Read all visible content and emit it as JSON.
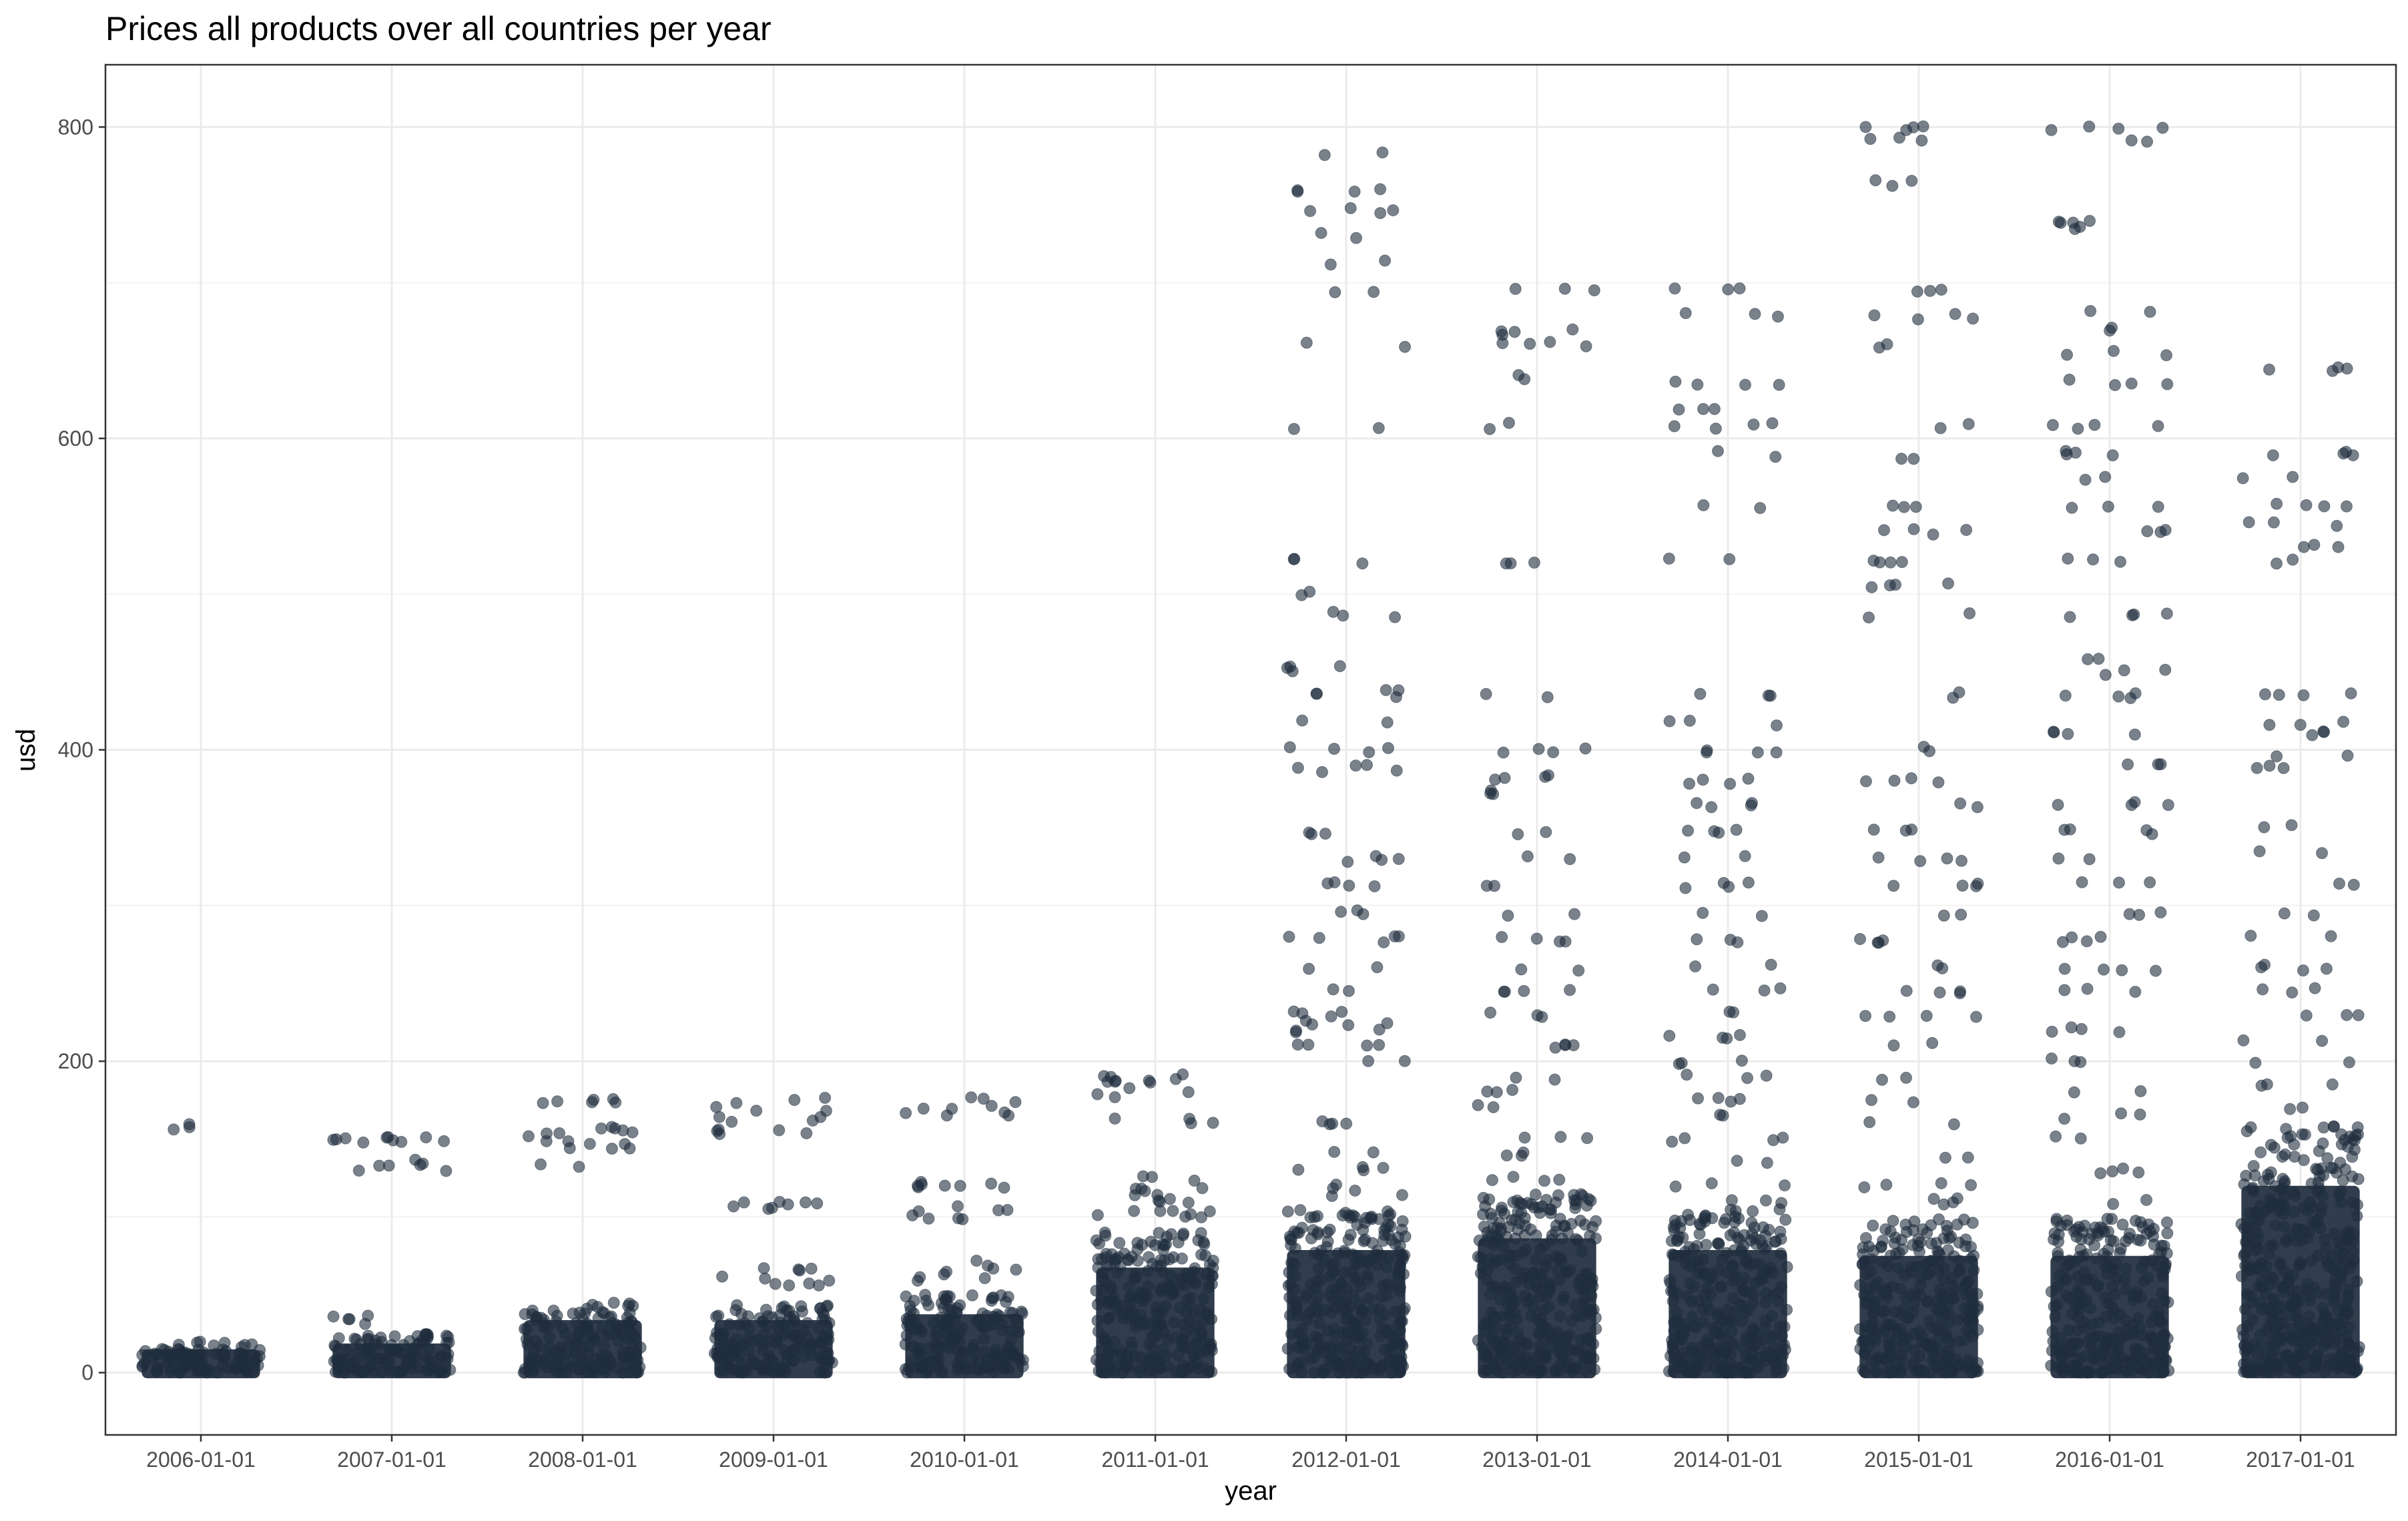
{
  "chart_data": {
    "type": "scatter",
    "title": "Prices all products over all countries per year",
    "xlabel": "year",
    "ylabel": "usd",
    "categories": [
      "2006-01-01",
      "2007-01-01",
      "2008-01-01",
      "2009-01-01",
      "2010-01-01",
      "2011-01-01",
      "2012-01-01",
      "2013-01-01",
      "2014-01-01",
      "2015-01-01",
      "2016-01-01",
      "2017-01-01"
    ],
    "ylim": [
      -40,
      840
    ],
    "yticks": [
      0,
      200,
      400,
      600,
      800
    ],
    "grid": true,
    "point_color": "#1f2d3d",
    "point_opacity": 0.6,
    "jitter": true,
    "distributions": [
      {
        "year": "2006-01-01",
        "dense_max": 20,
        "outliers": [
          158
        ]
      },
      {
        "year": "2007-01-01",
        "dense_max": 25,
        "outliers": [
          33,
          35,
          130,
          132,
          135,
          148,
          150,
          151
        ]
      },
      {
        "year": "2008-01-01",
        "dense_max": 45,
        "outliers": [
          134,
          145,
          148,
          152,
          155,
          157,
          174,
          175
        ]
      },
      {
        "year": "2009-01-01",
        "dense_max": 45,
        "outliers": [
          58,
          60,
          65,
          67,
          107,
          108,
          155,
          157,
          163,
          170,
          175
        ]
      },
      {
        "year": "2010-01-01",
        "dense_max": 50,
        "outliers": [
          60,
          65,
          70,
          100,
          103,
          105,
          120,
          122,
          167,
          170,
          175
        ]
      },
      {
        "year": "2011-01-01",
        "dense_max": 90,
        "outliers": [
          100,
          105,
          110,
          115,
          120,
          125,
          162,
          178,
          182,
          185,
          188,
          190
        ]
      },
      {
        "year": "2012-01-01",
        "dense_max": 105,
        "outliers": [
          115,
          120,
          130,
          140,
          160,
          200,
          210,
          220,
          225,
          230,
          245,
          260,
          278,
          280,
          295,
          313,
          330,
          347,
          385,
          390,
          400,
          417,
          435,
          440,
          452,
          487,
          500,
          521,
          608,
          660,
          695,
          713,
          730,
          746,
          760,
          782
        ]
      },
      {
        "year": "2013-01-01",
        "dense_max": 115,
        "outliers": [
          125,
          140,
          150,
          170,
          180,
          190,
          210,
          230,
          245,
          260,
          278,
          295,
          313,
          330,
          347,
          372,
          382,
          400,
          435,
          521,
          608,
          640,
          660,
          668,
          695
        ]
      },
      {
        "year": "2014-01-01",
        "dense_max": 105,
        "outliers": [
          110,
          120,
          135,
          150,
          165,
          175,
          190,
          200,
          215,
          230,
          245,
          260,
          278,
          295,
          313,
          330,
          347,
          365,
          380,
          400,
          417,
          435,
          521,
          556,
          590,
          608,
          620,
          635,
          680,
          695
        ]
      },
      {
        "year": "2015-01-01",
        "dense_max": 100,
        "outliers": [
          110,
          120,
          140,
          160,
          175,
          190,
          210,
          230,
          245,
          260,
          278,
          295,
          313,
          330,
          347,
          365,
          380,
          400,
          435,
          487,
          505,
          521,
          540,
          556,
          585,
          608,
          660,
          678,
          695,
          764,
          793,
          800
        ]
      },
      {
        "year": "2016-01-01",
        "dense_max": 100,
        "outliers": [
          110,
          130,
          150,
          165,
          180,
          200,
          220,
          245,
          260,
          278,
          295,
          313,
          330,
          347,
          365,
          390,
          410,
          435,
          450,
          460,
          487,
          521,
          540,
          556,
          575,
          590,
          608,
          636,
          655,
          670,
          680,
          735,
          740,
          792,
          800
        ]
      },
      {
        "year": "2017-01-01",
        "dense_max": 160,
        "outliers": [
          170,
          185,
          200,
          215,
          230,
          245,
          260,
          280,
          295,
          313,
          335,
          350,
          390,
          395,
          410,
          418,
          435,
          521,
          532,
          545,
          556,
          575,
          590,
          645
        ]
      }
    ]
  }
}
